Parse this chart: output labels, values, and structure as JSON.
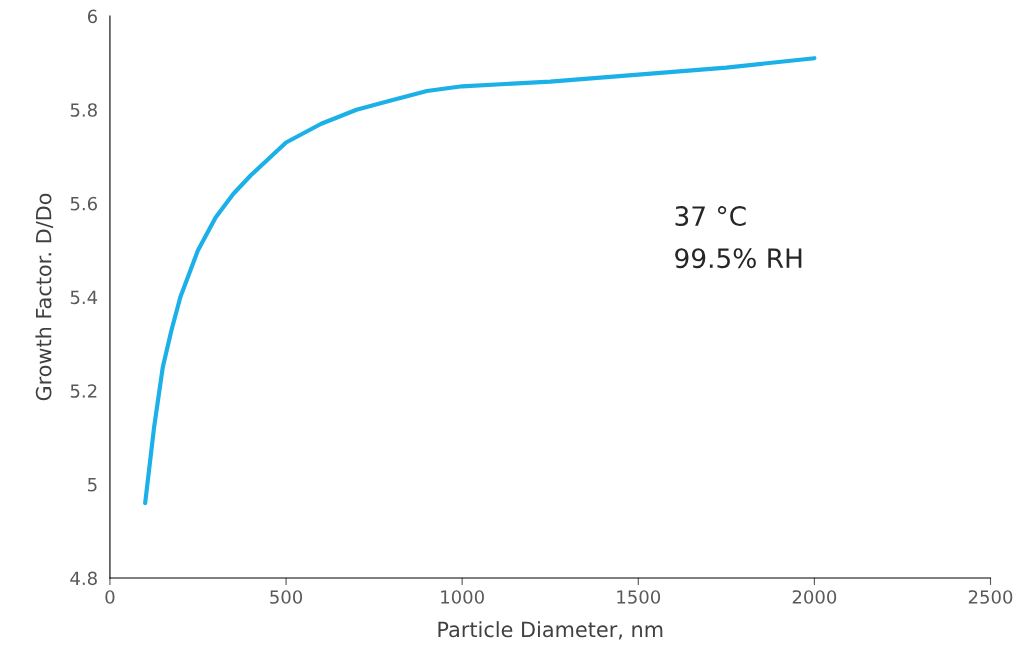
{
  "chart_data": {
    "type": "line",
    "xlabel": "Particle Diameter, nm",
    "ylabel": "Growth Factor. D/Do",
    "x": [
      100,
      125,
      150,
      175,
      200,
      250,
      300,
      350,
      400,
      500,
      600,
      700,
      800,
      900,
      1000,
      1250,
      1500,
      1750,
      2000
    ],
    "series": [
      {
        "color": "#1cb0e8",
        "values": [
          4.96,
          5.12,
          5.25,
          5.33,
          5.4,
          5.5,
          5.57,
          5.62,
          5.66,
          5.73,
          5.77,
          5.8,
          5.82,
          5.84,
          5.85,
          5.86,
          5.875,
          5.89,
          5.91
        ]
      }
    ],
    "xlim": [
      0,
      2500
    ],
    "xticks": [
      0,
      500,
      1000,
      1500,
      2000,
      2500
    ],
    "ylim": [
      4.8,
      6
    ],
    "yticks": [
      {
        "value": 4.8,
        "label": "4.8"
      },
      {
        "value": 5,
        "label": "5"
      },
      {
        "value": 5.2,
        "label": "5.2"
      },
      {
        "value": 5.4,
        "label": "5.4"
      },
      {
        "value": 5.6,
        "label": "5.6"
      },
      {
        "value": 5.8,
        "label": "5.8"
      },
      {
        "value": 6,
        "label": "6"
      }
    ],
    "grid": false,
    "legend": false,
    "marker": "none",
    "line_style": "solid",
    "annotations": [
      "37 °C",
      "99.5% RH"
    ]
  }
}
